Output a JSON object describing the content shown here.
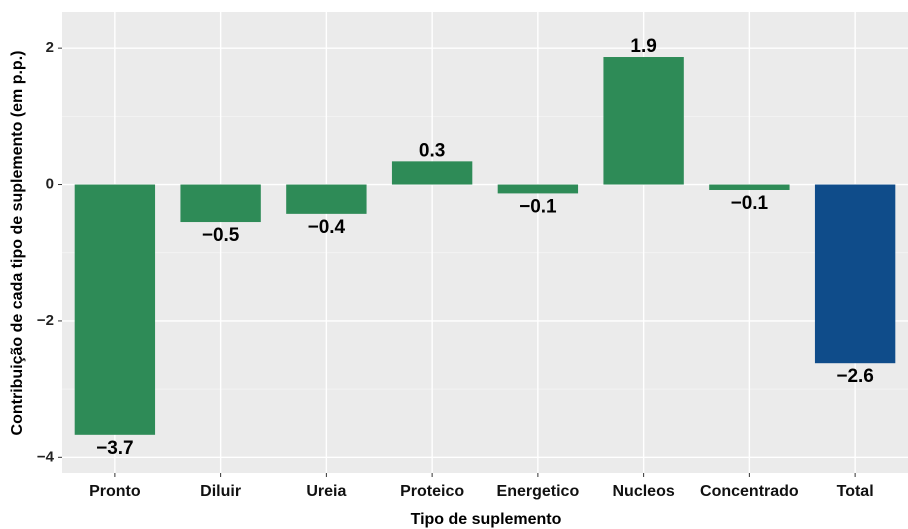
{
  "chart_data": {
    "type": "bar",
    "xlabel": "Tipo de suplemento",
    "ylabel": "Contribuição de cada tipo de suplemento (em p.p.)",
    "categories": [
      "Pronto",
      "Diluir",
      "Ureia",
      "Proteico",
      "Energetico",
      "Nucleos",
      "Concentrado",
      "Total"
    ],
    "values": [
      -3.67,
      -0.55,
      -0.43,
      0.34,
      -0.13,
      1.87,
      -0.08,
      -2.62
    ],
    "value_labels": [
      "−3.7",
      "−0.5",
      "−0.4",
      "0.3",
      "−0.1",
      "1.9",
      "−0.1",
      "−2.6"
    ],
    "colors": [
      "#2e8b57",
      "#2e8b57",
      "#2e8b57",
      "#2e8b57",
      "#2e8b57",
      "#2e8b57",
      "#2e8b57",
      "#0f4c8a"
    ],
    "ylim": [
      -4.23,
      2.53
    ],
    "yticks": [
      {
        "value": -4,
        "label": "−4"
      },
      {
        "value": -2,
        "label": "−2"
      },
      0,
      2
    ],
    "minor_yticks": [
      -3,
      -1,
      1
    ],
    "grid": true
  }
}
